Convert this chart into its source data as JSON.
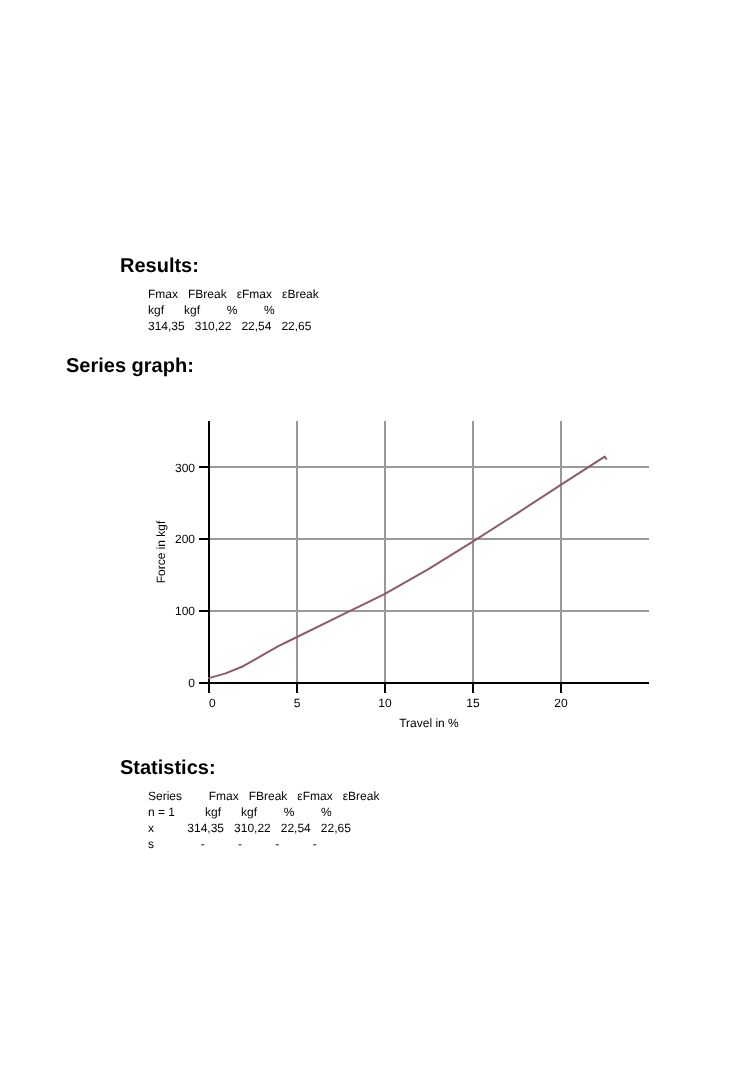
{
  "chart_data": {
    "type": "line",
    "title": "Series graph:",
    "xlabel": "Travel in %",
    "ylabel": "Force in kgf",
    "x": [
      0,
      1,
      2,
      3,
      4,
      5,
      7.5,
      10,
      12.5,
      15,
      17.5,
      20,
      22.54,
      22.65
    ],
    "series": [
      {
        "color": "#8b5a6b",
        "values": [
          5,
          12,
          22,
          36,
          50,
          62,
          92,
          122,
          157,
          195,
          234,
          274,
          314,
          310
        ]
      }
    ],
    "xlim": [
      0,
      25
    ],
    "ylim": [
      0,
      365
    ],
    "xticks": [
      0,
      5,
      10,
      15,
      20
    ],
    "yticks": [
      0,
      100,
      200,
      300
    ],
    "grid": true,
    "marker": "none",
    "line_style": "solid",
    "annotations": [
      "Results:",
      "Fmax   FBreak   εFmax   εBreak",
      "kgf      kgf        %        %",
      "314,35   310,22   22,54   22,65",
      "Statistics:",
      "Series        Fmax   FBreak   εFmax   εBreak",
      "n = 1         kgf      kgf        %        %",
      "x          314,35   310,22   22,54   22,65",
      "s              -          -          -          -"
    ]
  }
}
